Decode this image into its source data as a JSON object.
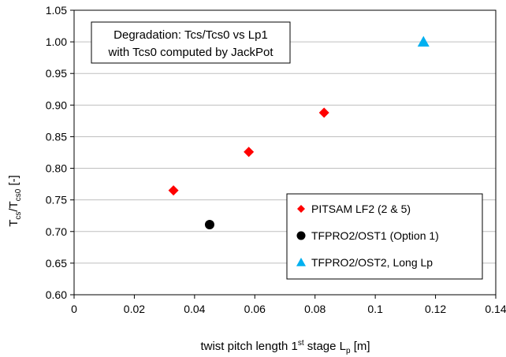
{
  "chart_data": {
    "type": "scatter",
    "title": "",
    "xlabel": {
      "main": "twist pitch length 1",
      "sup": "st",
      "mid": " stage L",
      "sub": "p",
      "unit": " [m]"
    },
    "ylabel": {
      "t1": "T",
      "s1": "cs",
      "slash": "/T",
      "s2": "cs0",
      "unit": " [-]"
    },
    "xlim": [
      0,
      0.14
    ],
    "ylim": [
      0.6,
      1.05
    ],
    "xticks": [
      "0",
      "0.02",
      "0.04",
      "0.06",
      "0.08",
      "0.1",
      "0.12",
      "0.14"
    ],
    "xtick_values": [
      0,
      0.02,
      0.04,
      0.06,
      0.08,
      0.1,
      0.12,
      0.14
    ],
    "yticks": [
      "0.60",
      "0.65",
      "0.70",
      "0.75",
      "0.80",
      "0.85",
      "0.90",
      "0.95",
      "1.00",
      "1.05"
    ],
    "ytick_values": [
      0.6,
      0.65,
      0.7,
      0.75,
      0.8,
      0.85,
      0.9,
      0.95,
      1.0,
      1.05
    ],
    "grid": "horizontal",
    "legend_position": "bottom-right",
    "annotation": [
      "Degradation: Tcs/Tcs0 vs Lp1",
      "with Tcs0 computed by JackPot"
    ],
    "series": [
      {
        "name": "PITSAM LF2 (2 & 5)",
        "marker": "diamond",
        "color": "#ff0000",
        "points": [
          [
            0.033,
            0.765
          ],
          [
            0.058,
            0.826
          ],
          [
            0.083,
            0.888
          ]
        ]
      },
      {
        "name": "TFPRO2/OST1 (Option 1)",
        "marker": "circle",
        "color": "#000000",
        "points": [
          [
            0.045,
            0.711
          ]
        ]
      },
      {
        "name": "TFPRO2/OST2, Long Lp",
        "marker": "triangle",
        "color": "#00b0f0",
        "points": [
          [
            0.116,
            1.0
          ]
        ]
      }
    ]
  }
}
